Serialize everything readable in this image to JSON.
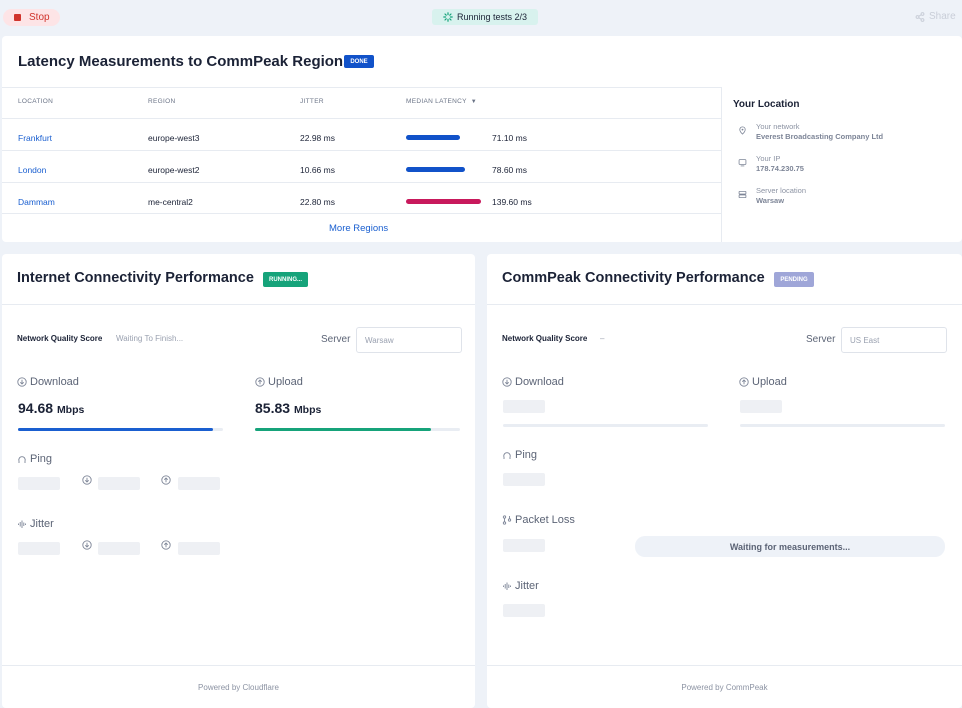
{
  "topbar": {
    "stop_label": "Stop",
    "running_label": "Running tests 2/3",
    "share_label": "Share"
  },
  "latency": {
    "title": "Latency Measurements to CommPeak Regions",
    "status_badge": "DONE",
    "columns": [
      "LOCATION",
      "REGION",
      "JITTER",
      "MEDIAN LATENCY"
    ],
    "rows": [
      {
        "location": "Frankfurt",
        "region": "europe-west3",
        "jitter": "22.98 ms",
        "median": "71.10 ms",
        "fill": 0.72,
        "color": "#1152c9"
      },
      {
        "location": "London",
        "region": "europe-west2",
        "jitter": "10.66 ms",
        "median": "78.60 ms",
        "fill": 0.79,
        "color": "#1152c9"
      },
      {
        "location": "Dammam",
        "region": "me-central2",
        "jitter": "22.80 ms",
        "median": "139.60 ms",
        "fill": 1.0,
        "color": "#c8195c"
      }
    ],
    "more_regions": "More Regions"
  },
  "your_location": {
    "title": "Your Location",
    "network_label": "Your network",
    "network_value": "Everest Broadcasting Company Ltd",
    "ip_label": "Your IP",
    "ip_value": "178.74.230.75",
    "server_label": "Server location",
    "server_value": "Warsaw"
  },
  "internet": {
    "title": "Internet Connectivity Performance",
    "status_badge": "RUNNING...",
    "nqs_label": "Network Quality Score",
    "nqs_value": "Waiting To Finish...",
    "server_label": "Server",
    "server_placeholder": "Warsaw",
    "download_label": "Download",
    "download_value": "94.68",
    "download_unit": "Mbps",
    "download_progress": 0.95,
    "upload_label": "Upload",
    "upload_value": "85.83",
    "upload_unit": "Mbps",
    "upload_progress": 0.86,
    "ping_label": "Ping",
    "jitter_label": "Jitter",
    "footer": "Powered by Cloudflare",
    "download_color": "#1a5fd0",
    "upload_color": "#16a37a"
  },
  "commpeak": {
    "title": "CommPeak Connectivity Performance",
    "status_badge": "PENDING",
    "nqs_label": "Network Quality Score",
    "nqs_value": "–",
    "server_label": "Server",
    "server_placeholder": "US East",
    "download_label": "Download",
    "upload_label": "Upload",
    "ping_label": "Ping",
    "packet_loss_label": "Packet Loss",
    "waiting_label": "Waiting for measurements...",
    "jitter_label": "Jitter",
    "footer": "Powered by CommPeak"
  }
}
